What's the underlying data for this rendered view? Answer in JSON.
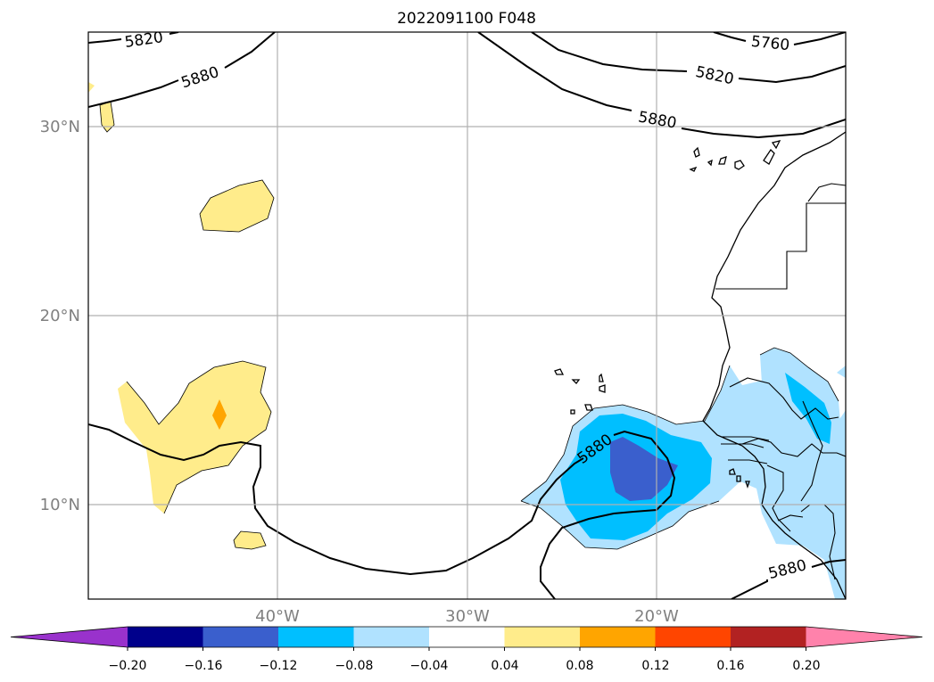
{
  "title": "2022091100 F048",
  "map": {
    "lat_labels": [
      "30°N",
      "20°N",
      "10°N"
    ],
    "lon_labels": [
      "40°W",
      "30°W",
      "20°W"
    ],
    "contour_labels": [
      "5820",
      "5880",
      "5760",
      "5820",
      "5880",
      "5880",
      "5880"
    ],
    "gridline_color": "#b0b0b0"
  },
  "colorbar": {
    "ticks": [
      "−0.20",
      "−0.16",
      "−0.12",
      "−0.08",
      "−0.04",
      "0.04",
      "0.08",
      "0.12",
      "0.16",
      "0.20"
    ],
    "colors": [
      "#9932cc",
      "#00008b",
      "#3a5fcd",
      "#00bfff",
      "#b0e2ff",
      "#ffffff",
      "#ffec8b",
      "#ffa500",
      "#ff4500",
      "#b22222",
      "#ff82ab"
    ]
  }
}
